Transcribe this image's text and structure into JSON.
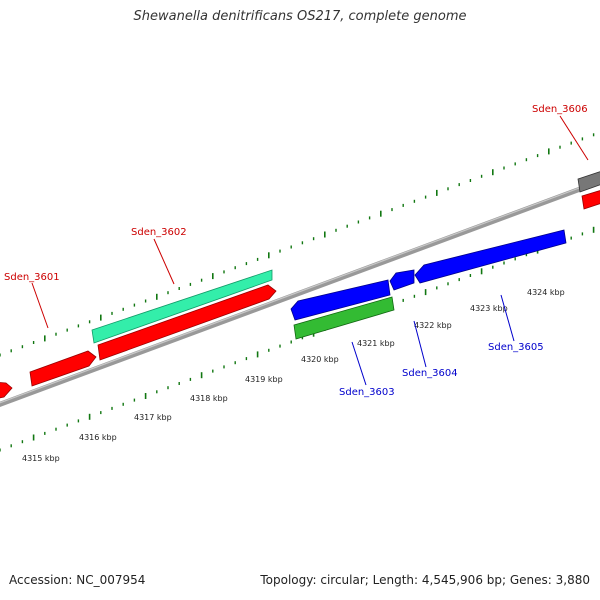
{
  "title": "Shewanella denitrificans OS217, complete genome",
  "footer": {
    "accession": "Accession: NC_007954",
    "summary": "Topology: circular; Length: 4,545,906 bp; Genes: 3,880"
  },
  "colors": {
    "forward_cds": "#ff0000",
    "reverse_cds": "#0000ff",
    "rna_green": "#33bb33",
    "rna_aqua": "#33eeaa",
    "pseudo_grey": "#777777",
    "tick": "#117711",
    "backbone": "#888888"
  },
  "scale": {
    "labels": [
      "4315 kbp",
      "4316 kbp",
      "4317 kbp",
      "4318 kbp",
      "4319 kbp",
      "4320 kbp",
      "4321 kbp",
      "4322 kbp",
      "4323 kbp",
      "4324 kbp"
    ]
  },
  "gene_labels": {
    "g3601": "Sden_3601",
    "g3602": "Sden_3602",
    "g3603": "Sden_3603",
    "g3604": "Sden_3604",
    "g3605": "Sden_3605",
    "g3606": "Sden_3606"
  }
}
